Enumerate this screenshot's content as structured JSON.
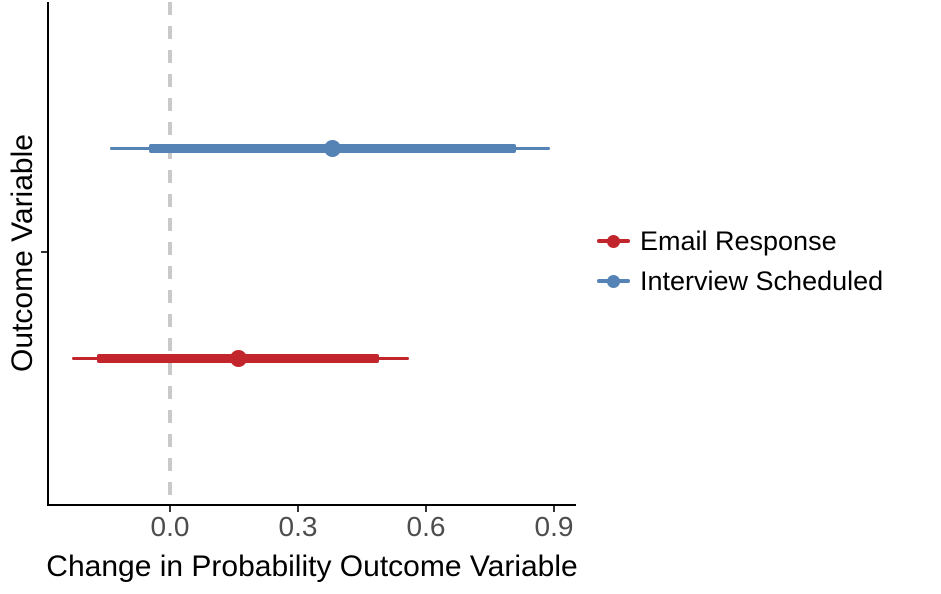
{
  "chart_data": {
    "type": "scatter",
    "style": "pointrange coefficient (forest) plot, horizontal intervals",
    "title": "",
    "xlabel": "Change in Probability Outcome Variable",
    "ylabel": "Outcome Variable",
    "x_ticks": [
      0.0,
      0.3,
      0.6,
      0.9
    ],
    "x_tick_labels": [
      "0.0",
      "0.3",
      "0.6",
      "0.9"
    ],
    "xlim": [
      -0.29,
      0.95
    ],
    "grid": "off",
    "legend_position": "right",
    "reference_line": {
      "x": 0.0,
      "style": "dashed",
      "color": "#c9c9c9"
    },
    "series": [
      {
        "name": "Email Response",
        "color": "#c2262c",
        "estimate": 0.16,
        "inner_interval": [
          -0.17,
          0.49
        ],
        "outer_interval": [
          -0.23,
          0.56
        ]
      },
      {
        "name": "Interview Scheduled",
        "color": "#5583b6",
        "estimate": 0.38,
        "inner_interval": [
          -0.05,
          0.81
        ],
        "outer_interval": [
          -0.14,
          0.89
        ]
      }
    ]
  },
  "legend": {
    "items": [
      {
        "label": "Email Response",
        "color": "#c2262c"
      },
      {
        "label": "Interview Scheduled",
        "color": "#5583b6"
      }
    ]
  }
}
